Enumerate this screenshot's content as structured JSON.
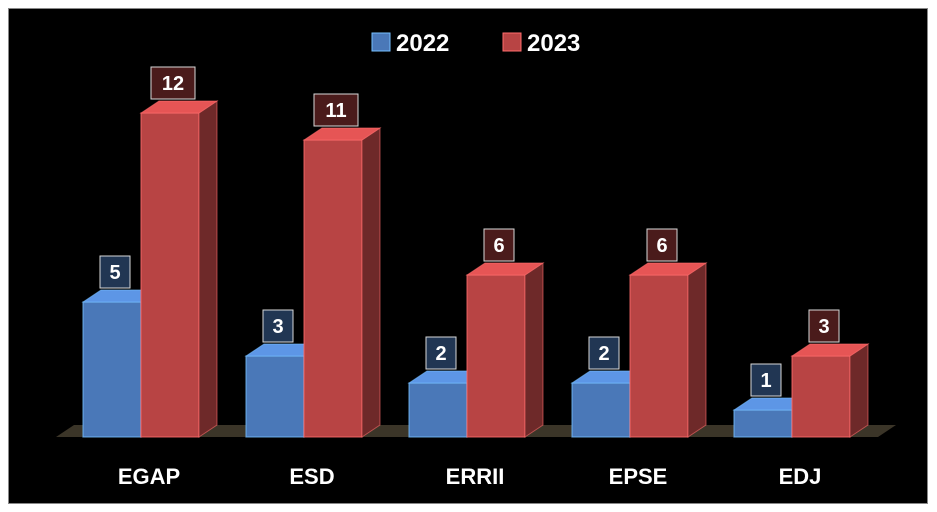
{
  "chart_data": {
    "type": "bar",
    "categories": [
      "EGAP",
      "ESD",
      "ERRII",
      "EPSE",
      "EDJ"
    ],
    "series": [
      {
        "name": "2022",
        "values": [
          5,
          3,
          2,
          2,
          1
        ],
        "color": "#4a78b8"
      },
      {
        "name": "2023",
        "values": [
          12,
          11,
          6,
          6,
          3
        ],
        "color": "#b84444"
      }
    ],
    "title": "",
    "xlabel": "",
    "ylabel": "",
    "ylim": [
      0,
      12
    ],
    "grid": false,
    "legend_position": "top-center",
    "style": "3d-clustered-column"
  }
}
